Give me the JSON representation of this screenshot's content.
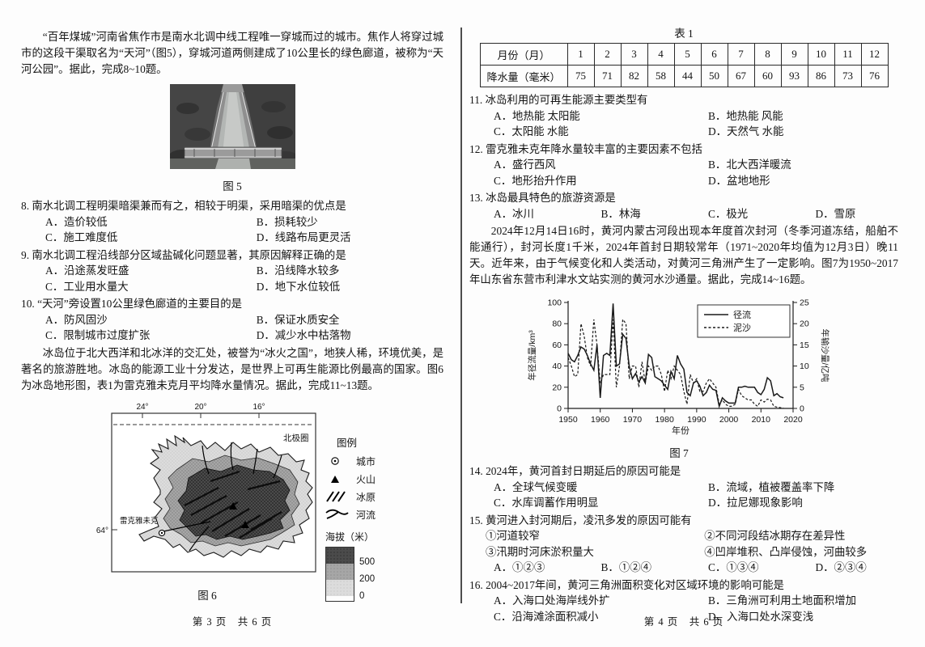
{
  "left": {
    "intro1": "“百年煤城”河南省焦作市是南水北调中线工程唯一穿城而过的城市。焦作人将穿过城市的这段干渠取名为“天河”（图5），穿城河道两侧建成了10公里长的绿色廊道，被称为“天河公园”。据此，完成8~10题。",
    "fig5_caption": "图 5",
    "q8": {
      "stem": "8. 南水北调工程明渠暗渠兼而有之，相较于明渠，采用暗渠的优点是",
      "options": [
        "A．造价较低",
        "B．损耗较少",
        "C．施工难度低",
        "D．线路布局更灵活"
      ]
    },
    "q9": {
      "stem": "9. 南水北调工程沿线部分区域盐碱化问题显著，其原因解释正确的是",
      "options": [
        "A．沿途蒸发旺盛",
        "B．沿线降水较多",
        "C．工业用水量大",
        "D．地下水位较低"
      ]
    },
    "q10": {
      "stem": "10. “天河”旁设置10公里绿色廊道的主要目的是",
      "options": [
        "A．防风固沙",
        "B．保证水质安全",
        "C．限制城市过度扩张",
        "D．减少水中枯落物"
      ]
    },
    "intro2": "冰岛位于北大西洋和北冰洋的交汇处，被誉为“冰火之国”，地狭人稀，环境优美，是著名的旅游胜地。冰岛的能源工业十分发达，是世界上可再生能源比例最高的国家。图6为冰岛地形图，表1为雷克雅未克月平均降水量情况。据此，完成11~13题。",
    "map": {
      "lons": [
        "24°",
        "20°",
        "16°"
      ],
      "lat": "64°",
      "arctic_label": "北极圈",
      "city_label": "雷克雅未克",
      "legend_title": "图例",
      "legend": [
        {
          "symbol": "city",
          "label": "城市"
        },
        {
          "symbol": "volcano",
          "label": "火山"
        },
        {
          "symbol": "ice-field",
          "label": "冰原"
        },
        {
          "symbol": "river",
          "label": "河流"
        }
      ],
      "elev_title": "海拔（米）",
      "elev": [
        "500",
        "200",
        "0"
      ]
    },
    "fig6_caption": "图 6",
    "footer": "第 3 页　共 6 页"
  },
  "right": {
    "table1": {
      "caption": "表 1",
      "row1_head": "月份（月）",
      "row2_head": "降水量（毫米）",
      "months": [
        "1",
        "2",
        "3",
        "4",
        "5",
        "6",
        "7",
        "8",
        "9",
        "10",
        "11",
        "12"
      ],
      "values": [
        "75",
        "71",
        "82",
        "58",
        "44",
        "50",
        "67",
        "60",
        "93",
        "86",
        "73",
        "76"
      ]
    },
    "q11": {
      "stem": "11. 冰岛利用的可再生能源主要类型有",
      "options": [
        "A．地热能 太阳能",
        "B．地热能 风能",
        "C．太阳能 水能",
        "D．天然气 水能"
      ]
    },
    "q12": {
      "stem": "12. 雷克雅未克年降水量较丰富的主要因素不包括",
      "options": [
        "A．盛行西风",
        "B．北大西洋暖流",
        "C．地形抬升作用",
        "D．盆地地形"
      ]
    },
    "q13": {
      "stem": "13. 冰岛最具特色的旅游资源是",
      "options": [
        "A．冰川",
        "B．林海",
        "C．极光",
        "D．雪原"
      ]
    },
    "intro3": "2024年12月14日16时，黄河内蒙古河段出现本年度首次封河（冬季河道冻结，船舶不能通行），封河长度1千米，2024年首封日期较常年（1971~2020年均值为12月3日）晚11天。近年来，由于气候变化和人类活动，对黄河三角洲产生了一定影响。图7为1950~2017年山东省东营市利津水文站实测的黄河水沙通量。据此，完成14~16题。",
    "fig7_caption": "图 7",
    "q14": {
      "stem": "14. 2024年，黄河首封日期延后的原因可能是",
      "options": [
        "A．全球气候变暖",
        "B．流域，植被覆盖率下降",
        "C．水库调蓄作用明显",
        "D．拉尼娜现象影响"
      ]
    },
    "q15": {
      "stem": "15. 黄河进入封河期后，凌汛多发的原因可能有",
      "subitems": [
        "①河道较窄",
        "②不同河段结冰期存在差异性",
        "③汛期时河床淤积量大",
        "④凹岸堆积、凸岸侵蚀，河曲较多"
      ],
      "options": [
        "A．①②③",
        "B．①②④",
        "C．①③④",
        "D．②③④"
      ]
    },
    "q16": {
      "stem": "16. 2004~2017年间，黄河三角洲面积变化对区域环境的影响可能是",
      "options": [
        "A．入海口处海岸线外扩",
        "B．三角洲可利用土地面积增加",
        "C．沿海滩涂面积减小",
        "D．入海口处水深变浅"
      ]
    },
    "footer": "第 4 页　共 6 页"
  },
  "chart_data": {
    "type": "line",
    "title": "图 7",
    "xlabel": "年份",
    "ylabel_left": "年径流量/km³",
    "ylabel_right": "年输沙量/亿吨",
    "xlim": [
      1950,
      2020
    ],
    "x_ticks": [
      1950,
      1960,
      1970,
      1980,
      1990,
      2000,
      2010,
      2020
    ],
    "ylim_left": [
      0,
      100
    ],
    "yticks_left": [
      0,
      20,
      40,
      60,
      80,
      100
    ],
    "ylim_right": [
      0,
      25
    ],
    "yticks_right": [
      0,
      5,
      10,
      15,
      20,
      25
    ],
    "legend": [
      "径流",
      "泥沙"
    ],
    "legend_position": "top-right",
    "grid": false,
    "x_start": 1950,
    "x_end": 2017,
    "series": [
      {
        "name": "径流",
        "axis": "left",
        "style": "solid",
        "values": [
          52,
          46,
          44,
          50,
          58,
          56,
          50,
          42,
          36,
          60,
          10,
          50,
          52,
          50,
          99,
          40,
          42,
          70,
          66,
          40,
          28,
          33,
          25,
          30,
          24,
          51,
          48,
          30,
          28,
          26,
          22,
          18,
          35,
          28,
          50,
          42,
          37,
          15,
          12,
          24,
          26,
          21,
          12,
          15,
          22,
          18,
          17,
          2,
          10,
          7,
          5,
          5,
          5,
          20,
          20,
          21,
          20,
          20,
          20,
          15,
          13,
          18,
          29,
          26,
          12,
          14,
          11,
          10
        ]
      },
      {
        "name": "泥沙",
        "axis": "right",
        "style": "dashed",
        "values": [
          12,
          10,
          7.5,
          8,
          20,
          17,
          12,
          10,
          21,
          15,
          6,
          8,
          8,
          8,
          21,
          5,
          10,
          21,
          20,
          7,
          10,
          10,
          5,
          11,
          6,
          10,
          9,
          10,
          10,
          8,
          4,
          9,
          7,
          10,
          9,
          8,
          4,
          1,
          8,
          6,
          7,
          4,
          4,
          6,
          7,
          6,
          5,
          1,
          2,
          1,
          0.5,
          0.5,
          1,
          4.5,
          3,
          2.5,
          2,
          2,
          1,
          0.5,
          2,
          1.5,
          2.2,
          2,
          0.5,
          0.3,
          0.2,
          0.1
        ]
      }
    ]
  }
}
